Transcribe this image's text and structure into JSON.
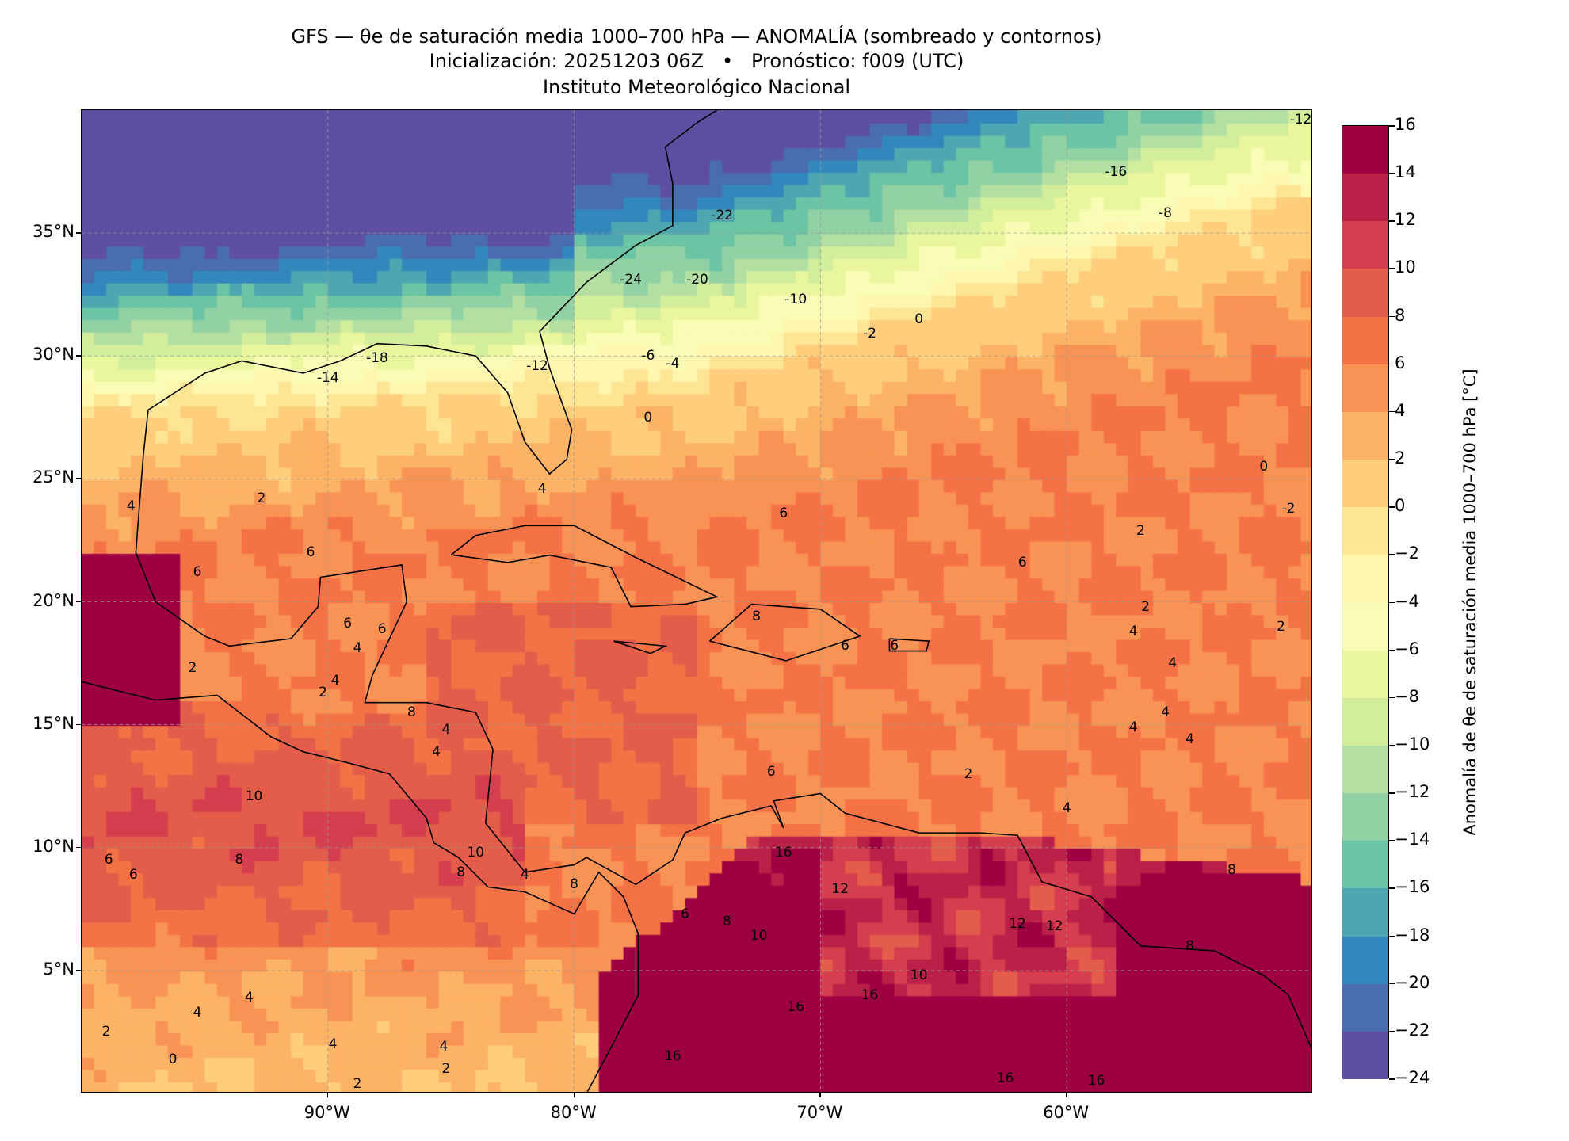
{
  "header": {
    "title_line1": "GFS — θe de saturación media 1000–700 hPa — ANOMALÍA (sombreado y contornos)",
    "title_line2": "Inicialización: 20251203 06Z   •   Pronóstico: f009 (UTC)",
    "title_line3": "Instituto Meteorológico Nacional"
  },
  "map": {
    "extent_lon": [
      -100,
      -50
    ],
    "extent_lat": [
      0,
      40
    ],
    "lat_ticks": [
      {
        "value": 35,
        "label": "35°N"
      },
      {
        "value": 30,
        "label": "30°N"
      },
      {
        "value": 25,
        "label": "25°N"
      },
      {
        "value": 20,
        "label": "20°N"
      },
      {
        "value": 15,
        "label": "15°N"
      },
      {
        "value": 10,
        "label": "10°N"
      },
      {
        "value": 5,
        "label": "5°N"
      }
    ],
    "lon_ticks": [
      {
        "value": -90,
        "label": "90°W"
      },
      {
        "value": -80,
        "label": "80°W"
      },
      {
        "value": -70,
        "label": "70°W"
      },
      {
        "value": -60,
        "label": "60°W"
      }
    ],
    "contour_labels": [
      {
        "lon": -50.5,
        "lat": 39.6,
        "text": "-12"
      },
      {
        "lon": -58,
        "lat": 37.5,
        "text": "-16"
      },
      {
        "lon": -56,
        "lat": 35.8,
        "text": "-8"
      },
      {
        "lon": -74,
        "lat": 35.7,
        "text": "-22"
      },
      {
        "lon": -77.7,
        "lat": 33.1,
        "text": "-24"
      },
      {
        "lon": -75,
        "lat": 33.1,
        "text": "-20"
      },
      {
        "lon": -71,
        "lat": 32.3,
        "text": "-10"
      },
      {
        "lon": -68,
        "lat": 30.9,
        "text": "-2"
      },
      {
        "lon": -66,
        "lat": 31.5,
        "text": "0"
      },
      {
        "lon": -77,
        "lat": 30.0,
        "text": "-6"
      },
      {
        "lon": -76,
        "lat": 29.7,
        "text": "-4"
      },
      {
        "lon": -81.5,
        "lat": 29.6,
        "text": "-12"
      },
      {
        "lon": -88,
        "lat": 29.9,
        "text": "-18"
      },
      {
        "lon": -90,
        "lat": 29.1,
        "text": "-14"
      },
      {
        "lon": -77,
        "lat": 27.5,
        "text": "0"
      },
      {
        "lon": -52,
        "lat": 25.5,
        "text": "0"
      },
      {
        "lon": -51,
        "lat": 23.8,
        "text": "-2"
      },
      {
        "lon": -81.3,
        "lat": 24.6,
        "text": "4"
      },
      {
        "lon": -92.7,
        "lat": 24.2,
        "text": "2"
      },
      {
        "lon": -98,
        "lat": 23.9,
        "text": "4"
      },
      {
        "lon": -71.5,
        "lat": 23.6,
        "text": "6"
      },
      {
        "lon": -90.7,
        "lat": 22.0,
        "text": "6"
      },
      {
        "lon": -95.3,
        "lat": 21.2,
        "text": "6"
      },
      {
        "lon": -57,
        "lat": 22.9,
        "text": "2"
      },
      {
        "lon": -61.8,
        "lat": 21.6,
        "text": "6"
      },
      {
        "lon": -87.8,
        "lat": 18.9,
        "text": "6"
      },
      {
        "lon": -89.2,
        "lat": 19.1,
        "text": "6"
      },
      {
        "lon": -72.6,
        "lat": 19.4,
        "text": "8"
      },
      {
        "lon": -56.8,
        "lat": 19.8,
        "text": "2"
      },
      {
        "lon": -51.3,
        "lat": 19.0,
        "text": "2"
      },
      {
        "lon": -57.3,
        "lat": 18.8,
        "text": "4"
      },
      {
        "lon": -67,
        "lat": 18.2,
        "text": "6"
      },
      {
        "lon": -69,
        "lat": 18.2,
        "text": "6"
      },
      {
        "lon": -88.8,
        "lat": 18.1,
        "text": "4"
      },
      {
        "lon": -95.5,
        "lat": 17.3,
        "text": "2"
      },
      {
        "lon": -89.7,
        "lat": 16.8,
        "text": "4"
      },
      {
        "lon": -90.2,
        "lat": 16.3,
        "text": "2"
      },
      {
        "lon": -55.7,
        "lat": 17.5,
        "text": "4"
      },
      {
        "lon": -56,
        "lat": 15.5,
        "text": "4"
      },
      {
        "lon": -57.3,
        "lat": 14.9,
        "text": "4"
      },
      {
        "lon": -55,
        "lat": 14.4,
        "text": "4"
      },
      {
        "lon": -86.6,
        "lat": 15.5,
        "text": "8"
      },
      {
        "lon": -85.2,
        "lat": 14.8,
        "text": "4"
      },
      {
        "lon": -85.6,
        "lat": 13.9,
        "text": "4"
      },
      {
        "lon": -72,
        "lat": 13.1,
        "text": "6"
      },
      {
        "lon": -64,
        "lat": 13.0,
        "text": "2"
      },
      {
        "lon": -60,
        "lat": 11.6,
        "text": "4"
      },
      {
        "lon": -93,
        "lat": 12.1,
        "text": "10"
      },
      {
        "lon": -93.6,
        "lat": 9.5,
        "text": "8"
      },
      {
        "lon": -98.9,
        "lat": 9.5,
        "text": "6"
      },
      {
        "lon": -97.9,
        "lat": 8.9,
        "text": "6"
      },
      {
        "lon": -84,
        "lat": 9.8,
        "text": "10"
      },
      {
        "lon": -84.6,
        "lat": 9.0,
        "text": "8"
      },
      {
        "lon": -82,
        "lat": 8.9,
        "text": "4"
      },
      {
        "lon": -80,
        "lat": 8.5,
        "text": "8"
      },
      {
        "lon": -71.5,
        "lat": 9.8,
        "text": "16"
      },
      {
        "lon": -69.2,
        "lat": 8.3,
        "text": "12"
      },
      {
        "lon": -73.8,
        "lat": 7.0,
        "text": "8"
      },
      {
        "lon": -75.5,
        "lat": 7.3,
        "text": "6"
      },
      {
        "lon": -72.5,
        "lat": 6.4,
        "text": "10"
      },
      {
        "lon": -66,
        "lat": 4.8,
        "text": "10"
      },
      {
        "lon": -62,
        "lat": 6.9,
        "text": "12"
      },
      {
        "lon": -60.5,
        "lat": 6.8,
        "text": "12"
      },
      {
        "lon": -55,
        "lat": 6.0,
        "text": "8"
      },
      {
        "lon": -53.3,
        "lat": 9.1,
        "text": "8"
      },
      {
        "lon": -71,
        "lat": 3.5,
        "text": "16"
      },
      {
        "lon": -68,
        "lat": 4.0,
        "text": "16"
      },
      {
        "lon": -76,
        "lat": 1.5,
        "text": "16"
      },
      {
        "lon": -62.5,
        "lat": 0.6,
        "text": "16"
      },
      {
        "lon": -58.8,
        "lat": 0.5,
        "text": "16"
      },
      {
        "lon": -93.2,
        "lat": 3.9,
        "text": "4"
      },
      {
        "lon": -95.3,
        "lat": 3.3,
        "text": "4"
      },
      {
        "lon": -89.8,
        "lat": 2.0,
        "text": "4"
      },
      {
        "lon": -85.3,
        "lat": 1.9,
        "text": "4"
      },
      {
        "lon": -99,
        "lat": 2.5,
        "text": "2"
      },
      {
        "lon": -96.3,
        "lat": 1.4,
        "text": "0"
      },
      {
        "lon": -88.8,
        "lat": 0.4,
        "text": "2"
      },
      {
        "lon": -85.2,
        "lat": 1.0,
        "text": "2"
      }
    ]
  },
  "colorbar": {
    "label": "Anomalía de θe de saturación media 1000–700 hPa [°C]",
    "ticks": [
      "16",
      "14",
      "12",
      "10",
      "8",
      "6",
      "4",
      "2",
      "0",
      "−2",
      "−4",
      "−6",
      "−8",
      "−10",
      "−12",
      "−14",
      "−16",
      "−18",
      "−20",
      "−22",
      "−24"
    ],
    "colors": [
      "#9e0142",
      "#bb2148",
      "#d53e4f",
      "#e45c4a",
      "#f47245",
      "#f99355",
      "#fdb365",
      "#fece7c",
      "#fee593",
      "#fff6b0",
      "#f9fcb4",
      "#e9f69e",
      "#d2ed9b",
      "#b3e0a2",
      "#91d1a4",
      "#6bc4a4",
      "#4ea7b0",
      "#3288bd",
      "#4a6cb0",
      "#5e4fa2"
    ]
  }
}
